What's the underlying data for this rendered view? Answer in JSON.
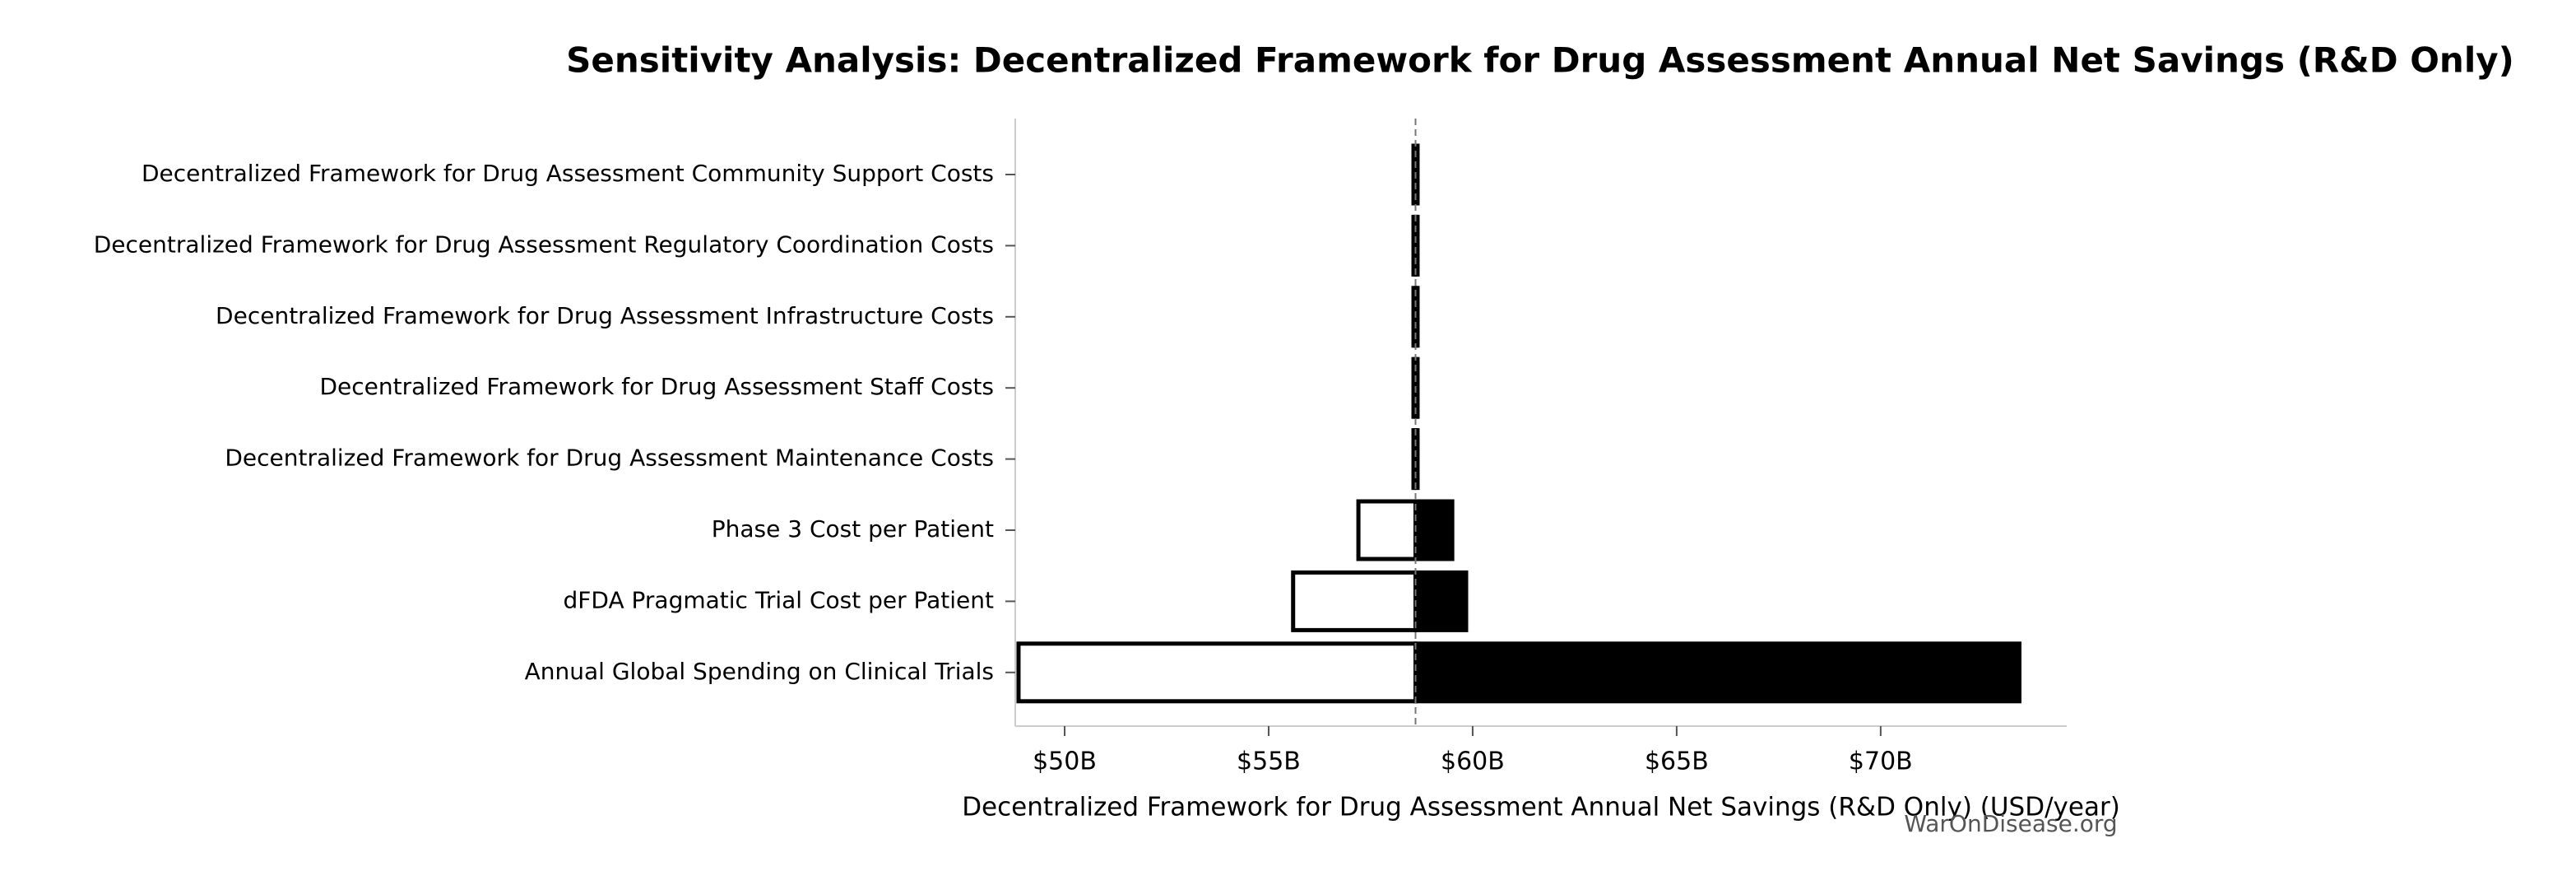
{
  "chart_data": {
    "type": "tornado",
    "title": "Sensitivity Analysis: Decentralized Framework for Drug Assessment Annual Net Savings (R&D Only)",
    "xlabel": "Decentralized Framework for Drug Assessment Annual Net Savings (R&D Only) (USD/year)",
    "watermark": "WarOnDisease.org",
    "categories": [
      "Decentralized Framework for Drug Assessment Community Support Costs",
      "Decentralized Framework for Drug Assessment Regulatory Coordination Costs",
      "Decentralized Framework for Drug Assessment Infrastructure Costs",
      "Decentralized Framework for Drug Assessment Staff Costs",
      "Decentralized Framework for Drug Assessment Maintenance Costs",
      "Phase 3 Cost per Patient",
      "dFDA Pragmatic Trial Cost per Patient",
      "Annual Global Spending on Clinical Trials"
    ],
    "low_values": [
      58.55,
      58.55,
      58.55,
      58.55,
      58.55,
      57.2,
      55.6,
      48.87
    ],
    "high_values": [
      58.65,
      58.65,
      58.65,
      58.65,
      58.65,
      59.5,
      59.84,
      73.4
    ],
    "baseline": 58.6,
    "low_color": "#ffffff",
    "high_color": "#000000",
    "xlim": [
      48.79,
      74.56
    ],
    "xticks": [
      {
        "value": 50,
        "label": "$50B"
      },
      {
        "value": 55,
        "label": "$55B"
      },
      {
        "value": 60,
        "label": "$60B"
      },
      {
        "value": 65,
        "label": "$65B"
      },
      {
        "value": 70,
        "label": "$70B"
      }
    ]
  }
}
